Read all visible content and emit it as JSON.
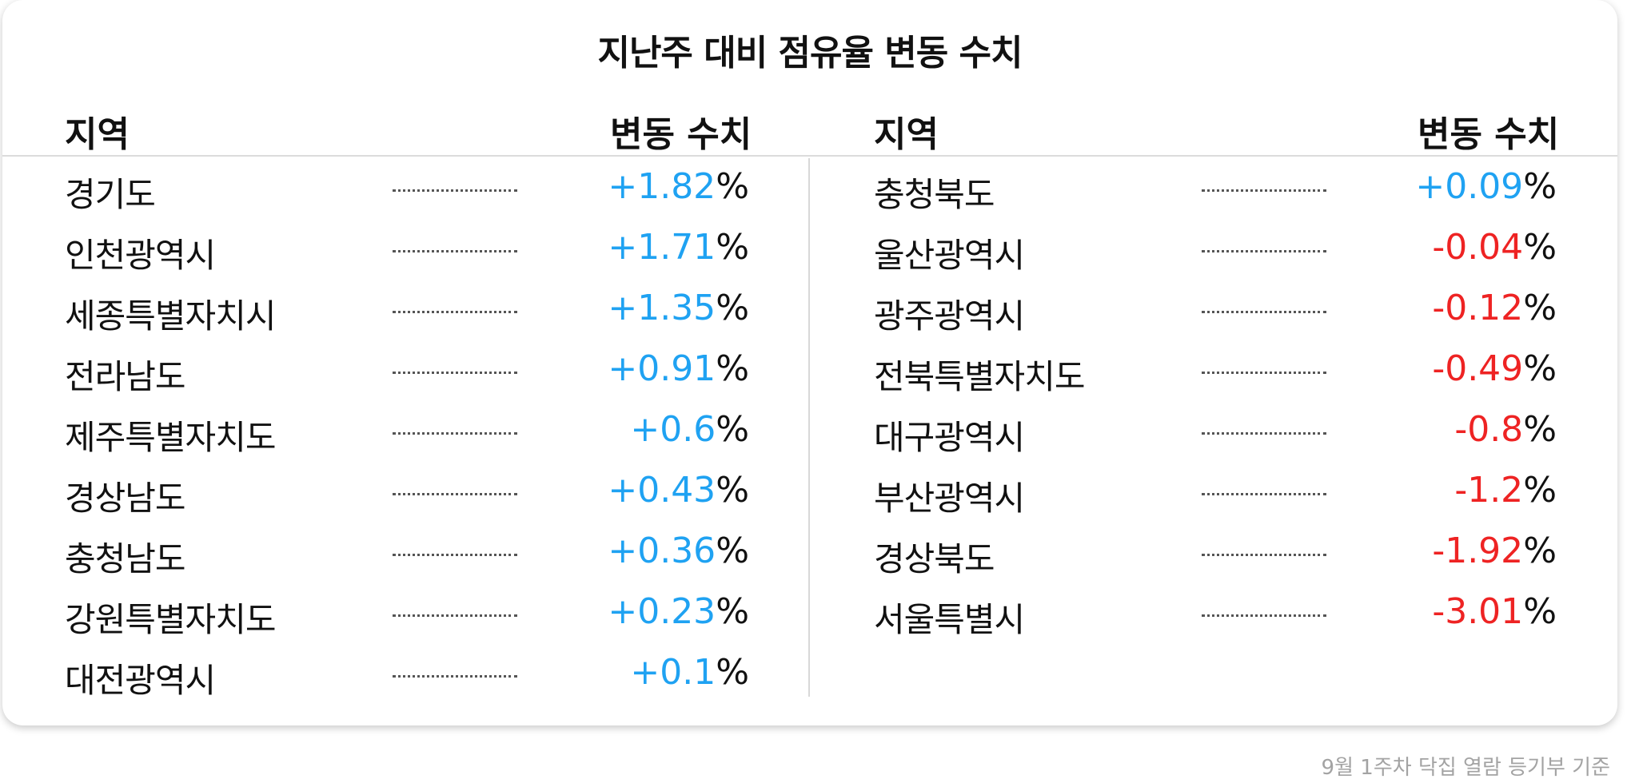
{
  "title": "지난주 대비 점유율 변동 수치",
  "columns": {
    "region_header": "지역",
    "change_header": "변동 수치"
  },
  "colors": {
    "positive": "#1fa2f2",
    "negative": "#ee2323"
  },
  "percent_sign": "%",
  "left": [
    {
      "region": "경기도",
      "change": "+1.82",
      "sign": "positive"
    },
    {
      "region": "인천광역시",
      "change": "+1.71",
      "sign": "positive"
    },
    {
      "region": "세종특별자치시",
      "change": "+1.35",
      "sign": "positive"
    },
    {
      "region": "전라남도",
      "change": "+0.91",
      "sign": "positive"
    },
    {
      "region": "제주특별자치도",
      "change": "+0.6",
      "sign": "positive"
    },
    {
      "region": "경상남도",
      "change": "+0.43",
      "sign": "positive"
    },
    {
      "region": "충청남도",
      "change": "+0.36",
      "sign": "positive"
    },
    {
      "region": "강원특별자치도",
      "change": "+0.23",
      "sign": "positive"
    },
    {
      "region": "대전광역시",
      "change": "+0.1",
      "sign": "positive"
    }
  ],
  "right": [
    {
      "region": "충청북도",
      "change": "+0.09",
      "sign": "positive"
    },
    {
      "region": "울산광역시",
      "change": "-0.04",
      "sign": "negative"
    },
    {
      "region": "광주광역시",
      "change": "-0.12",
      "sign": "negative"
    },
    {
      "region": "전북특별자치도",
      "change": "-0.49",
      "sign": "negative"
    },
    {
      "region": "대구광역시",
      "change": "-0.8",
      "sign": "negative"
    },
    {
      "region": "부산광역시",
      "change": "-1.2",
      "sign": "negative"
    },
    {
      "region": "경상북도",
      "change": "-1.92",
      "sign": "negative"
    },
    {
      "region": "서울특별시",
      "change": "-3.01",
      "sign": "negative"
    }
  ],
  "footnote": "9월 1주차 닥집 열람 등기부 기준"
}
